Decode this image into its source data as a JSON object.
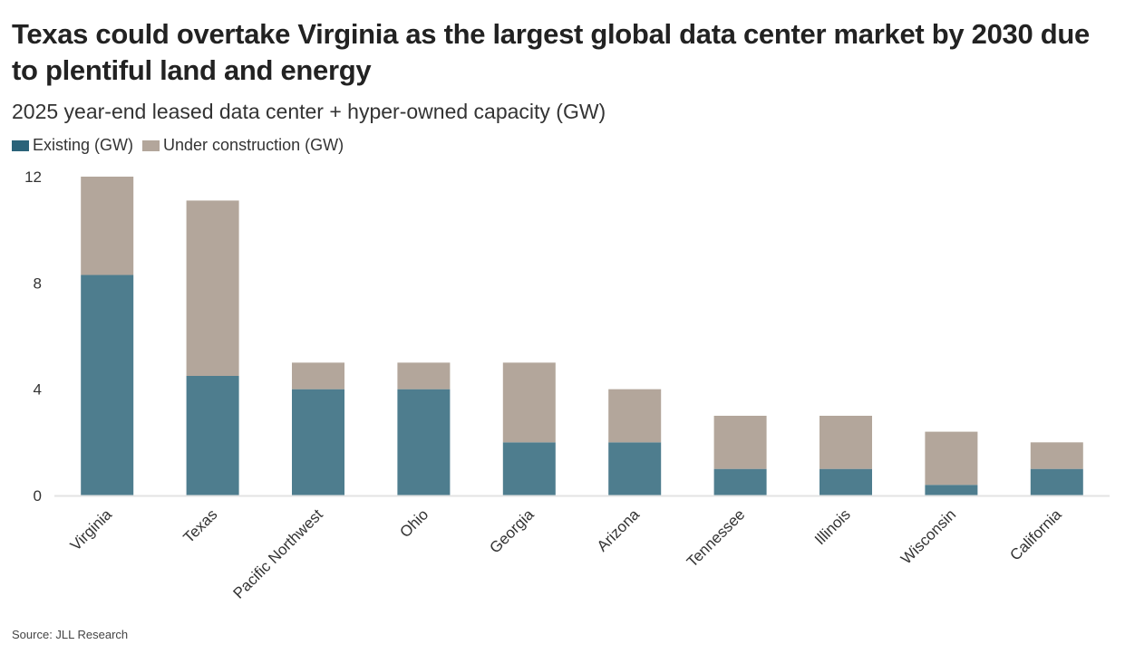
{
  "title": "Texas could overtake Virginia as the largest global data center market by 2030 due to plentiful land and energy",
  "subtitle": "2025 year-end leased data center + hyper-owned capacity (GW)",
  "source": "Source: JLL Research",
  "chart_data": {
    "type": "bar",
    "stacked": true,
    "categories": [
      "Virginia",
      "Texas",
      "Pacific Northwest",
      "Ohio",
      "Georgia",
      "Arizona",
      "Tennessee",
      "Illinois",
      "Wisconsin",
      "California"
    ],
    "series": [
      {
        "name": "Existing (GW)",
        "color": "#4e7d8e",
        "legend_color": "#2b6379",
        "values": [
          8.3,
          4.5,
          4,
          4,
          2,
          2,
          1,
          1,
          0.4,
          1
        ]
      },
      {
        "name": "Under construction (GW)",
        "color": "#b3a69b",
        "values": [
          3.7,
          6.6,
          1,
          1,
          3,
          2,
          2,
          2,
          2,
          1
        ]
      }
    ],
    "yticks": [
      0,
      4,
      8,
      12
    ],
    "ylim": [
      0,
      12
    ],
    "grid": false,
    "legend_position": "top-left"
  }
}
